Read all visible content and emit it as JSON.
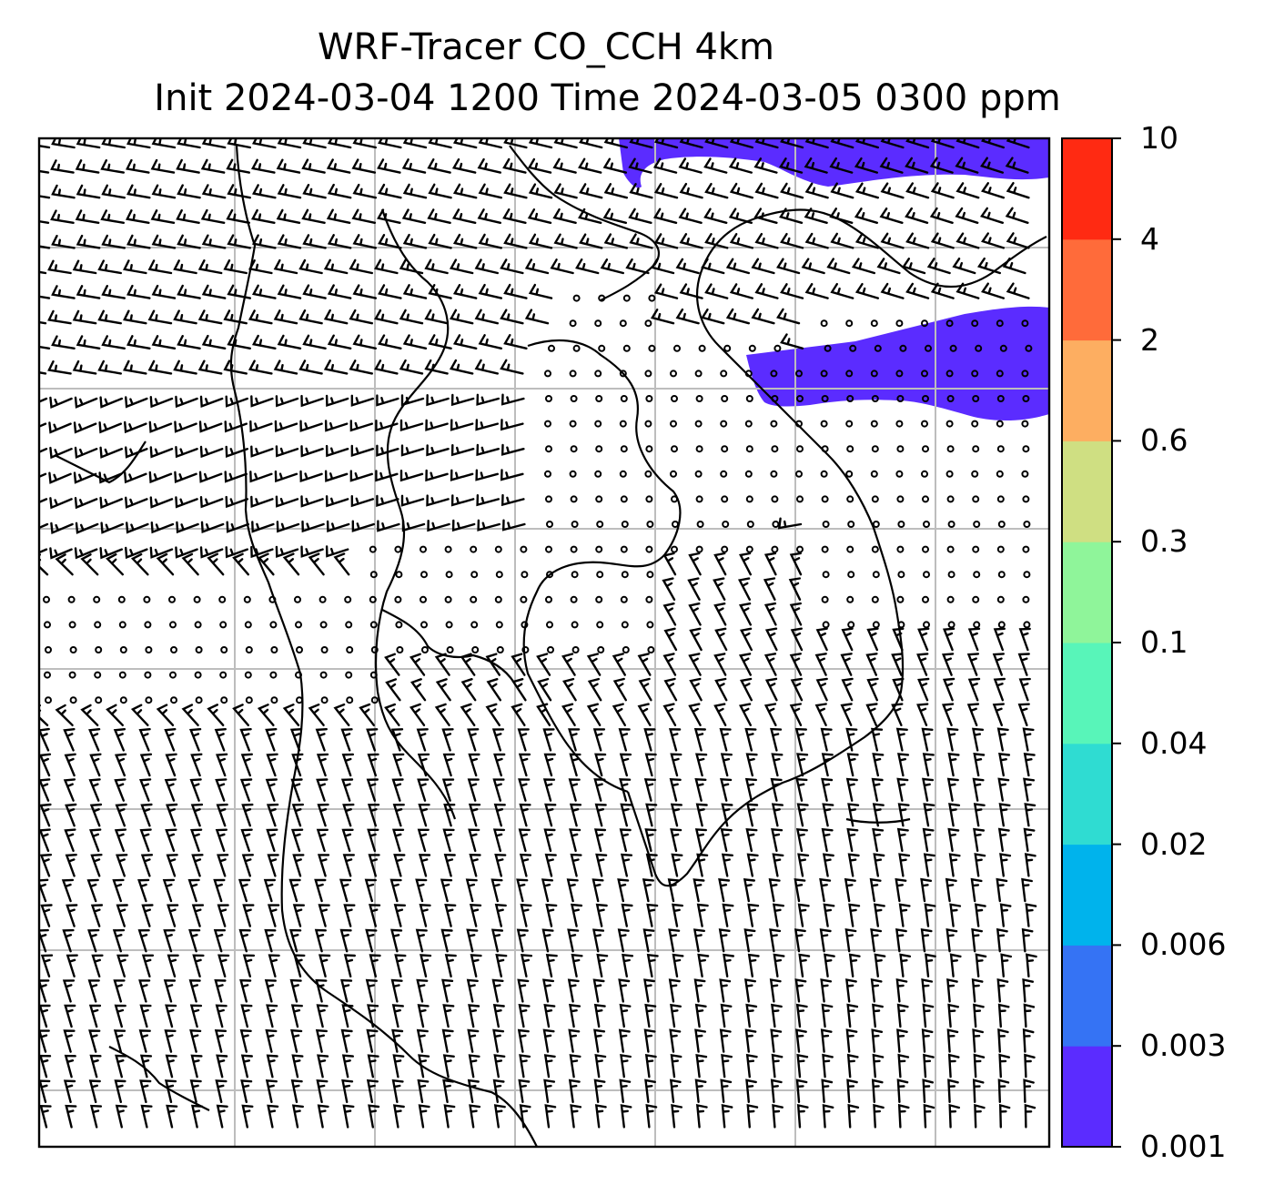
{
  "figure": {
    "title_line1": "WRF-Tracer CO_CCH 4km",
    "title_line2": "Init 2024-03-04 1200 Time 2024-03-05 0300 ppm"
  },
  "colorbar": {
    "levels": [
      "0.001",
      "0.003",
      "0.006",
      "0.02",
      "0.04",
      "0.1",
      "0.3",
      "0.6",
      "2",
      "4",
      "10"
    ],
    "colors": [
      "#5b2cff",
      "#3573f4",
      "#00b3ec",
      "#2fdcd2",
      "#58f5b9",
      "#8ff59a",
      "#cfdf82",
      "#fdae61",
      "#ff6b3a",
      "#ff2a12"
    ]
  },
  "map": {
    "grid_on": true,
    "grid_color": "#bdbdbd",
    "tracer_fill_color": "#5b2cff",
    "barb_color": "#000000"
  }
}
